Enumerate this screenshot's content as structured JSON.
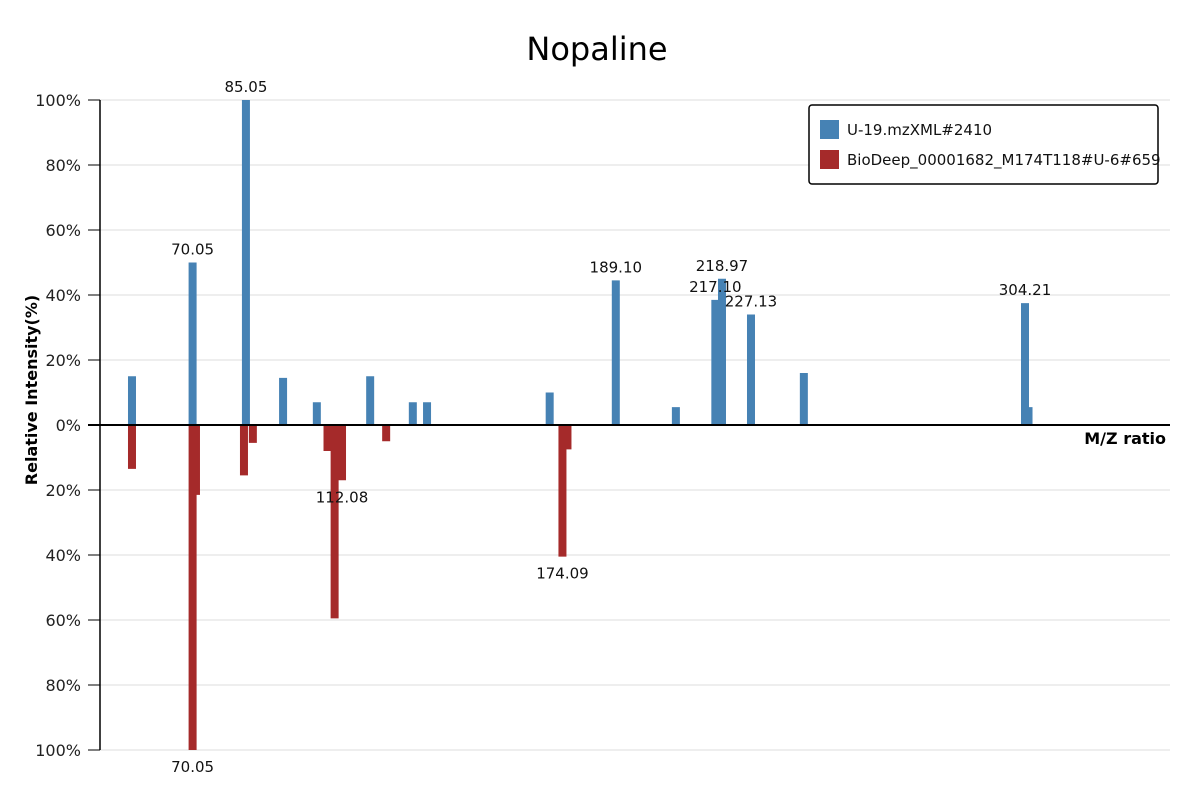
{
  "chart_data": {
    "type": "bar",
    "title": "Nopaline",
    "xlabel": "M/Z ratio",
    "ylabel": "Relative Intensity(%)",
    "xlim": [
      44,
      345
    ],
    "ylim_top": [
      0,
      100
    ],
    "ylim_bottom": [
      0,
      100
    ],
    "y_ticks_top": [
      "100%",
      "80%",
      "60%",
      "40%",
      "20%",
      "0%"
    ],
    "y_ticks_bottom": [
      "20%",
      "40%",
      "60%",
      "80%",
      "100%"
    ],
    "grid": true,
    "legend_position": "top-right",
    "series": [
      {
        "name": "U-19.mzXML#2410",
        "direction": "up",
        "color": "#4682B4",
        "peaks": [
          {
            "mz": 53.0,
            "intensity": 15
          },
          {
            "mz": 70.05,
            "intensity": 50,
            "label": "70.05"
          },
          {
            "mz": 85.05,
            "intensity": 100,
            "label": "85.05"
          },
          {
            "mz": 95.5,
            "intensity": 14.5
          },
          {
            "mz": 105.0,
            "intensity": 7
          },
          {
            "mz": 120.0,
            "intensity": 15
          },
          {
            "mz": 132.0,
            "intensity": 7
          },
          {
            "mz": 136.0,
            "intensity": 7
          },
          {
            "mz": 170.5,
            "intensity": 10
          },
          {
            "mz": 189.1,
            "intensity": 44.5,
            "label": "189.10"
          },
          {
            "mz": 206.0,
            "intensity": 5.5
          },
          {
            "mz": 217.1,
            "intensity": 38.5,
            "label": "217.10"
          },
          {
            "mz": 218.97,
            "intensity": 45,
            "label": "218.97"
          },
          {
            "mz": 227.13,
            "intensity": 34,
            "label": "227.13"
          },
          {
            "mz": 242.0,
            "intensity": 16
          },
          {
            "mz": 304.21,
            "intensity": 37.5,
            "label": "304.21"
          },
          {
            "mz": 305.2,
            "intensity": 5.5
          }
        ]
      },
      {
        "name": "BioDeep_00001682_M174T118#U-6#659",
        "direction": "down",
        "color": "#A52A2A",
        "peaks": [
          {
            "mz": 53.0,
            "intensity": 13.5
          },
          {
            "mz": 70.05,
            "intensity": 100,
            "label": "70.05"
          },
          {
            "mz": 71.0,
            "intensity": 21.5
          },
          {
            "mz": 84.5,
            "intensity": 15.5
          },
          {
            "mz": 87.0,
            "intensity": 5.5
          },
          {
            "mz": 108.0,
            "intensity": 8
          },
          {
            "mz": 110.0,
            "intensity": 59.5
          },
          {
            "mz": 112.08,
            "intensity": 17,
            "label": "112.08"
          },
          {
            "mz": 124.5,
            "intensity": 5
          },
          {
            "mz": 174.09,
            "intensity": 40.5,
            "label": "174.09"
          },
          {
            "mz": 175.5,
            "intensity": 7.5
          }
        ]
      }
    ]
  }
}
